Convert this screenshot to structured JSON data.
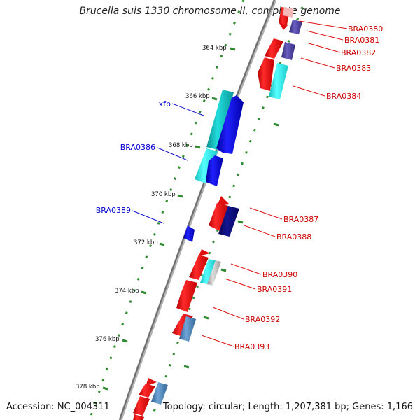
{
  "title": "Brucella suis 1330 chromosome II, complete genome",
  "footer": {
    "accession": "Accession: NC_004311",
    "topology": "Topology: circular; Length: 1,207,381 bp; Genes: 1,166"
  },
  "ruler": [
    "364 kbp",
    "366 kbp",
    "368 kbp",
    "370 kbp",
    "372 kbp",
    "374 kbp",
    "376 kbp",
    "378 kbp"
  ],
  "colors": {
    "red": "#ee1111",
    "cyan": "#11cccc",
    "aqua": "#33eeee",
    "blue": "#1111dd",
    "navy": "#0a0a80",
    "purple": "#4a3f99",
    "steel": "#4d82b8",
    "gray": "#bbbbbb",
    "backbone": "#7a7a7a",
    "tick": "#2e8b2e"
  },
  "gene_labels": {
    "left": [
      "xfp",
      "BRA0386",
      "BRA0389"
    ],
    "right": [
      "BRA0380",
      "BRA0381",
      "BRA0382",
      "BRA0383",
      "BRA0384",
      "BRA0387",
      "BRA0388",
      "BRA0390",
      "BRA0391",
      "BRA0392",
      "BRA0393"
    ]
  }
}
